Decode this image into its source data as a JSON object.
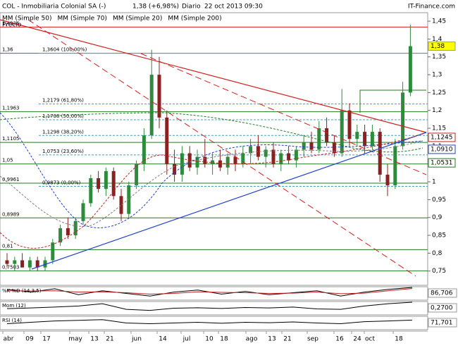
{
  "header": {
    "symbol": "COL - Inmobiliaria Colonial SA (-)",
    "quote": "1,38 (+6,98%)",
    "period": "Diario",
    "date": "22 oct 2013 09:30",
    "brand": "IT-Finance.com"
  },
  "legend": [
    {
      "name": "Precio",
      "color": "#808080"
    },
    {
      "name": "MM (Simple 50)",
      "color": "#808080"
    },
    {
      "name": "MM (Simple 70)",
      "color": "#1f3fc0"
    },
    {
      "name": "MM (Simple 20)",
      "color": "#c02020"
    },
    {
      "name": "MM (Simple 200)",
      "color": "#207a20"
    }
  ],
  "chart_data": {
    "type": "candlestick",
    "ylim": [
      0.71,
      1.46
    ],
    "yticks": [
      {
        "value": 1.45,
        "label": "1,45"
      },
      {
        "value": 1.4,
        "label": "1,4"
      },
      {
        "value": 1.35,
        "label": "1,35"
      },
      {
        "value": 1.3,
        "label": "1,3"
      },
      {
        "value": 1.25,
        "label": "1,25"
      },
      {
        "value": 1.2,
        "label": "1,2"
      },
      {
        "value": 1.15,
        "label": "1,15"
      },
      {
        "value": 1.1,
        "label": "1,1"
      },
      {
        "value": 1.05,
        "label": "1,05"
      },
      1,
      {
        "value": 0.95,
        "label": "0,95"
      },
      {
        "value": 0.9,
        "label": "0,9"
      },
      {
        "value": 0.85,
        "label": "0,85"
      },
      {
        "value": 0.8,
        "label": "0,8"
      },
      {
        "value": 0.75,
        "label": "0,75"
      }
    ],
    "categories": [
      "abr",
      "09",
      "17",
      "may",
      "13",
      "21",
      "jun",
      "14",
      "jul",
      "10",
      "18",
      "ago",
      "13",
      "21",
      "sep",
      "16",
      "24",
      "oct",
      "18"
    ],
    "levels": [
      {
        "value": 1.4336,
        "label": "1,4336"
      },
      {
        "value": 1.36,
        "label": "1,36"
      },
      {
        "value": 1.1963,
        "label": "1,1963"
      },
      {
        "value": 1.1105,
        "label": "1,1105"
      },
      {
        "value": 1.05,
        "label": "1,05"
      },
      {
        "value": 0.9961,
        "label": "0,9961"
      },
      {
        "value": 0.8989,
        "label": "0,8989"
      },
      {
        "value": 0.81,
        "label": "0,81"
      },
      {
        "value": 0.7503,
        "label": "0,7503"
      }
    ],
    "fibonacci": [
      {
        "value": 1.3604,
        "label": "1,3604 (100,00%)"
      },
      {
        "value": 1.2179,
        "label": "1,2179 (61,80%)"
      },
      {
        "value": 1.1738,
        "label": "1,1738 (50,00%)"
      },
      {
        "value": 1.1298,
        "label": "1,1298 (38,20%)"
      },
      {
        "value": 1.0753,
        "label": "1,0753 (23,60%)"
      },
      {
        "value": 0.9873,
        "label": "0,9873 (0,00%)"
      }
    ],
    "last_labels": [
      {
        "value": 1.38,
        "label": "1,38",
        "color": "#ffff00"
      },
      {
        "value": 1.1245,
        "label": "1,1245",
        "color": "#c02020"
      },
      {
        "value": 1.091,
        "label": "1,0910",
        "color": "#1f3fc0"
      },
      {
        "value": 1.0531,
        "label": "1,0531",
        "color": "#207a20"
      }
    ],
    "ohlc": [
      [
        0.78,
        0.8,
        0.76,
        0.77
      ],
      [
        0.77,
        0.79,
        0.75,
        0.78
      ],
      [
        0.78,
        0.8,
        0.76,
        0.76
      ],
      [
        0.76,
        0.79,
        0.75,
        0.78
      ],
      [
        0.78,
        0.79,
        0.75,
        0.76
      ],
      [
        0.76,
        0.79,
        0.75,
        0.78
      ],
      [
        0.78,
        0.84,
        0.77,
        0.83
      ],
      [
        0.83,
        0.88,
        0.82,
        0.87
      ],
      [
        0.87,
        0.9,
        0.84,
        0.85
      ],
      [
        0.85,
        0.9,
        0.84,
        0.89
      ],
      [
        0.89,
        0.95,
        0.88,
        0.94
      ],
      [
        0.94,
        1.02,
        0.93,
        1.01
      ],
      [
        1.01,
        1.03,
        0.97,
        0.98
      ],
      [
        0.98,
        1.04,
        0.96,
        1.03
      ],
      [
        1.03,
        1.04,
        0.95,
        0.96
      ],
      [
        0.96,
        0.98,
        0.89,
        0.91
      ],
      [
        0.91,
        1.0,
        0.9,
        0.99
      ],
      [
        0.99,
        1.06,
        0.98,
        1.05
      ],
      [
        1.05,
        1.15,
        1.03,
        1.13
      ],
      [
        1.13,
        1.37,
        1.12,
        1.3
      ],
      [
        1.3,
        1.35,
        1.15,
        1.18
      ],
      [
        1.18,
        1.2,
        1.02,
        1.05
      ],
      [
        1.05,
        1.09,
        1.0,
        1.02
      ],
      [
        1.02,
        1.1,
        1.0,
        1.08
      ],
      [
        1.08,
        1.1,
        1.03,
        1.04
      ],
      [
        1.04,
        1.09,
        1.02,
        1.07
      ],
      [
        1.07,
        1.12,
        1.04,
        1.05
      ],
      [
        1.05,
        1.08,
        1.02,
        1.06
      ],
      [
        1.06,
        1.09,
        1.03,
        1.04
      ],
      [
        1.04,
        1.08,
        1.02,
        1.07
      ],
      [
        1.07,
        1.09,
        1.03,
        1.05
      ],
      [
        1.05,
        1.1,
        1.04,
        1.08
      ],
      [
        1.08,
        1.12,
        1.05,
        1.1
      ],
      [
        1.1,
        1.13,
        1.06,
        1.07
      ],
      [
        1.07,
        1.1,
        1.04,
        1.09
      ],
      [
        1.09,
        1.11,
        1.04,
        1.05
      ],
      [
        1.05,
        1.09,
        1.03,
        1.08
      ],
      [
        1.08,
        1.1,
        1.05,
        1.06
      ],
      [
        1.06,
        1.1,
        1.04,
        1.09
      ],
      [
        1.09,
        1.13,
        1.07,
        1.11
      ],
      [
        1.11,
        1.14,
        1.08,
        1.09
      ],
      [
        1.09,
        1.17,
        1.08,
        1.15
      ],
      [
        1.15,
        1.18,
        1.1,
        1.11
      ],
      [
        1.11,
        1.13,
        1.07,
        1.08
      ],
      [
        1.08,
        1.26,
        1.07,
        1.2
      ],
      [
        1.2,
        1.22,
        1.1,
        1.12
      ],
      [
        1.12,
        1.16,
        1.1,
        1.14
      ],
      [
        1.14,
        1.16,
        1.08,
        1.1
      ],
      [
        1.1,
        1.16,
        1.09,
        1.14
      ],
      [
        1.14,
        1.15,
        1.0,
        1.02
      ],
      [
        1.02,
        1.05,
        0.96,
        0.99
      ],
      [
        0.99,
        1.12,
        0.98,
        1.1
      ],
      [
        1.1,
        1.28,
        1.09,
        1.25
      ],
      [
        1.25,
        1.44,
        1.24,
        1.38
      ]
    ],
    "indicators": [
      {
        "name": "%K %D (14,3,5)",
        "last": "86,706",
        "ylim": [
          0,
          100
        ],
        "series": [
          {
            "color": "#000000",
            "values": [
              80,
              60,
              85,
              40,
              70,
              50,
              30,
              60,
              75,
              45,
              65,
              40,
              55,
              70,
              30,
              60,
              80,
              95
            ]
          },
          {
            "color": "#c02020",
            "values": [
              70,
              68,
              70,
              60,
              62,
              55,
              45,
              50,
              62,
              58,
              55,
              50,
              52,
              60,
              48,
              52,
              70,
              87
            ]
          }
        ]
      },
      {
        "name": "Mom (12)",
        "last": "0,2700",
        "ylim": [
          -0.3,
          0.3
        ],
        "series": [
          {
            "color": "#000000",
            "values": [
              -0.02,
              0.01,
              0.05,
              0.1,
              0.2,
              -0.05,
              -0.1,
              0,
              0.02,
              -0.01,
              0.03,
              0.01,
              0.05,
              -0.03,
              -0.05,
              0.1,
              0.2,
              0.27
            ]
          }
        ]
      },
      {
        "name": "RSI (14)",
        "last": "71,701",
        "ylim": [
          0,
          100
        ],
        "series": [
          {
            "color": "#000000",
            "values": [
              45,
              55,
              65,
              70,
              75,
              50,
              45,
              50,
              55,
              48,
              55,
              52,
              58,
              50,
              45,
              60,
              65,
              72
            ]
          }
        ]
      }
    ]
  }
}
